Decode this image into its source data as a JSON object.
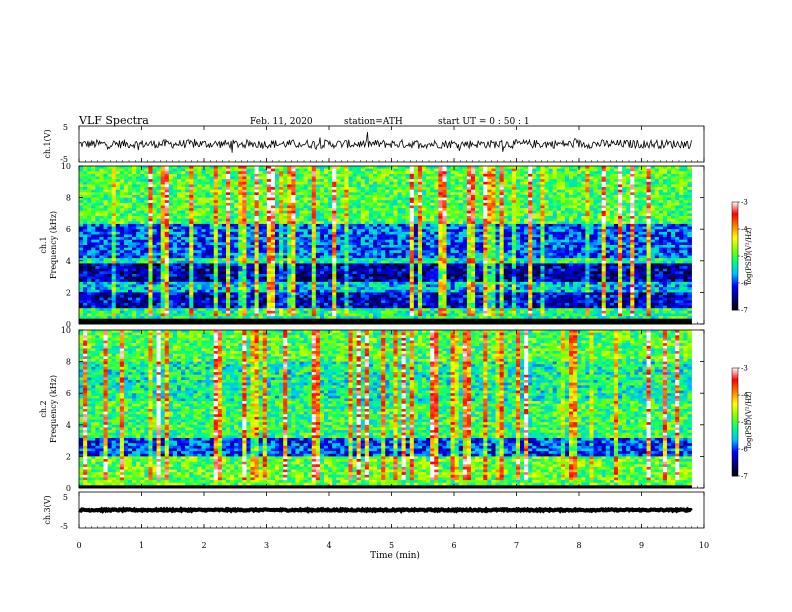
{
  "header": {
    "title": "VLF  Spectra",
    "date": "Feb. 11, 2020",
    "station": "station=ATH",
    "start": "start  UT  =    0  : 50 : 1"
  },
  "chart_data": [
    {
      "type": "line",
      "panel": "ch1-waveform",
      "ylabel": "ch.1(V)",
      "ylim": [
        -5,
        5
      ],
      "yticks": [
        "5",
        "-5"
      ],
      "baseline_level": 0,
      "noise_amplitude": 1.2
    },
    {
      "type": "heatmap",
      "panel": "ch1-spectrogram",
      "ylabel_top": "ch.1",
      "ylabel": "Frequency  (kHz)",
      "ylim": [
        0,
        10
      ],
      "yticks": [
        "0",
        "2",
        "4",
        "6",
        "8",
        "10"
      ],
      "colorbar": {
        "label": "log(PSD)(V²/Hz)",
        "range": [
          -7,
          -3
        ],
        "ticks": [
          "-3",
          "-4",
          "-5",
          "-6",
          "-7"
        ]
      },
      "bands_khz": [
        {
          "from": 0,
          "to": 0.4,
          "level": -7
        },
        {
          "from": 0.4,
          "to": 1.0,
          "level": -5.2
        },
        {
          "from": 1.0,
          "to": 2.0,
          "level": -6.3
        },
        {
          "from": 2.0,
          "to": 2.6,
          "level": -5.6
        },
        {
          "from": 2.6,
          "to": 3.8,
          "level": -6.4
        },
        {
          "from": 3.8,
          "to": 4.2,
          "level": -5.3
        },
        {
          "from": 4.2,
          "to": 6.4,
          "level": -5.9
        },
        {
          "from": 6.4,
          "to": 10,
          "level": -5.0
        }
      ]
    },
    {
      "type": "heatmap",
      "panel": "ch2-spectrogram",
      "ylabel_top": "ch.2",
      "ylabel": "Frequency  (kHz)",
      "ylim": [
        0,
        10
      ],
      "yticks": [
        "0",
        "2",
        "4",
        "6",
        "8",
        "10"
      ],
      "colorbar": {
        "label": "log(PSD)(V²/Hz)",
        "range": [
          -7,
          -3
        ],
        "ticks": [
          "-3",
          "-4",
          "-5",
          "-6",
          "-7"
        ]
      },
      "bands_khz": [
        {
          "from": 0,
          "to": 0.2,
          "level": -7
        },
        {
          "from": 0.2,
          "to": 2.0,
          "level": -4.9
        },
        {
          "from": 2.0,
          "to": 3.2,
          "level": -6.0
        },
        {
          "from": 3.2,
          "to": 5.5,
          "level": -5.1
        },
        {
          "from": 5.5,
          "to": 8.0,
          "level": -5.3
        },
        {
          "from": 8.0,
          "to": 10,
          "level": -5.0
        }
      ]
    },
    {
      "type": "line",
      "panel": "ch3-waveform",
      "ylabel": "ch.3(V)",
      "ylim": [
        -5,
        5
      ],
      "yticks": [
        "5",
        "-5"
      ],
      "baseline_level": 0,
      "noise_amplitude": 0.2
    }
  ],
  "xaxis": {
    "label": "Time  (min)",
    "range": [
      0,
      10
    ],
    "ticks": [
      "0",
      "1",
      "2",
      "3",
      "4",
      "5",
      "6",
      "7",
      "8",
      "9",
      "10"
    ],
    "data_end": 9.8
  },
  "colors": {
    "axis": "#000000",
    "trace": "#000000",
    "colormap": [
      "#000000",
      "#00007f",
      "#0000ff",
      "#00bfff",
      "#00ff80",
      "#80ff00",
      "#ffff00",
      "#ff8000",
      "#ff0000",
      "#ffffff"
    ]
  }
}
